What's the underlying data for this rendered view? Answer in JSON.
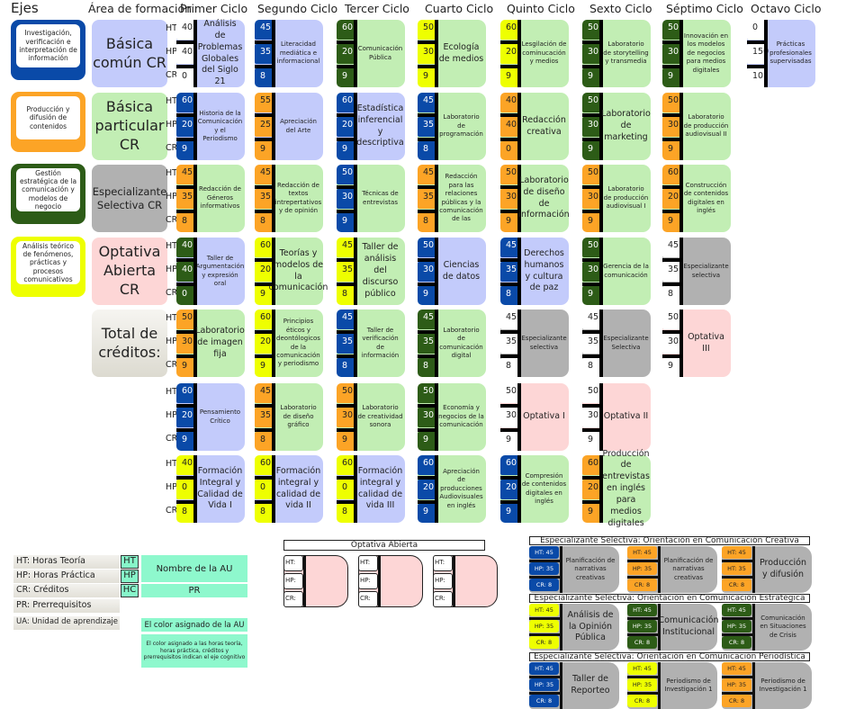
{
  "headers": {
    "ejes": "Ejes",
    "area": "Área de formación",
    "cycles": [
      "Primer Ciclo",
      "Segundo Ciclo",
      "Tercer Ciclo",
      "Cuarto Ciclo",
      "Quinto Ciclo",
      "Sexto Ciclo",
      "Séptimo Ciclo",
      "Octavo Ciclo"
    ]
  },
  "colors": {
    "blue": "#0a4aa8",
    "orange": "#fca426",
    "darkgreen": "#2d5c17",
    "yellow": "#eeff00",
    "lavender": "#c3cbfb",
    "lightgreen": "#c2eeb4",
    "pink": "#fdd6d6",
    "gray": "#b1b1b1",
    "mint": "#8ef8cd"
  },
  "axes": [
    {
      "label": "Investigación, verificación e interpretación de información",
      "color": "#0a4aa8"
    },
    {
      "label": "Producción y difusión de contenidos",
      "color": "#fca426"
    },
    {
      "label": "Gestión estratégica de la comunicación y modelos de negocio",
      "color": "#2d5c17"
    },
    {
      "label": "Análisis teórico de fenómenos, prácticas y procesos comunicativos",
      "color": "#eeff00"
    }
  ],
  "areas": [
    {
      "label": "Básica común CR",
      "color": "#c3cbfb"
    },
    {
      "label": "Básica particular CR",
      "color": "#c2eeb4"
    },
    {
      "label": "Especializante Selectiva CR",
      "color": "#b1b1b1"
    },
    {
      "label": "Optativa Abierta CR",
      "color": "#fdd6d6"
    },
    {
      "label": "Total de créditos:",
      "color": "#e6e4dc"
    }
  ],
  "row_labels": {
    "ht": "HT",
    "hp": "HP",
    "cr": "CR"
  },
  "courses": [
    {
      "cycle": 1,
      "row": 1,
      "name": "Análisis de Problemas Globales del Siglo 21",
      "ht": "40",
      "hp": "40",
      "cr": "0",
      "axis": "white",
      "area": "lavender",
      "big": true
    },
    {
      "cycle": 1,
      "row": 2,
      "name": "Historia de la Comunicación y el Periodismo",
      "ht": "60",
      "hp": "20",
      "cr": "9",
      "axis": "blue",
      "area": "lavender"
    },
    {
      "cycle": 1,
      "row": 3,
      "name": "Redacción de Géneros informativos",
      "ht": "45",
      "hp": "35",
      "cr": "8",
      "axis": "orange",
      "area": "lightgreen"
    },
    {
      "cycle": 1,
      "row": 4,
      "name": "Taller de Argumentación y expresión oral",
      "ht": "40",
      "hp": "40",
      "cr": "0",
      "axis": "darkgreen",
      "area": "lavender"
    },
    {
      "cycle": 1,
      "row": 5,
      "name": "Laboratorio de imagen fija",
      "ht": "50",
      "hp": "30",
      "cr": "9",
      "axis": "orange",
      "area": "lightgreen",
      "big": true
    },
    {
      "cycle": 1,
      "row": 6,
      "name": "Pensamiento Crítico",
      "ht": "60",
      "hp": "20",
      "cr": "9",
      "axis": "blue",
      "area": "lavender"
    },
    {
      "cycle": 1,
      "row": 7,
      "name": "Formación Integral y Calidad de Vida I",
      "ht": "40",
      "hp": "0",
      "cr": "8",
      "axis": "yellow",
      "area": "lavender",
      "big": true
    },
    {
      "cycle": 2,
      "row": 1,
      "name": "Literacidad mediática e informacional",
      "ht": "45",
      "hp": "35",
      "cr": "8",
      "axis": "blue",
      "area": "lavender"
    },
    {
      "cycle": 2,
      "row": 2,
      "name": "Apreciación del Arte",
      "ht": "55",
      "hp": "25",
      "cr": "9",
      "axis": "orange",
      "area": "lavender"
    },
    {
      "cycle": 2,
      "row": 3,
      "name": "Redacción de textos intrepertativos y de opinión",
      "ht": "45",
      "hp": "35",
      "cr": "8",
      "axis": "orange",
      "area": "lightgreen"
    },
    {
      "cycle": 2,
      "row": 4,
      "name": "Teorías y modelos de la comunicación",
      "ht": "60",
      "hp": "20",
      "cr": "9",
      "axis": "yellow",
      "area": "lightgreen",
      "big": true
    },
    {
      "cycle": 2,
      "row": 5,
      "name": "Principios éticos y deontólogicos de la comunicación y periodismo",
      "ht": "60",
      "hp": "20",
      "cr": "9",
      "axis": "yellow",
      "area": "lightgreen"
    },
    {
      "cycle": 2,
      "row": 6,
      "name": "Laboratorio de diseño gráfico",
      "ht": "45",
      "hp": "35",
      "cr": "8",
      "axis": "orange",
      "area": "lightgreen"
    },
    {
      "cycle": 2,
      "row": 7,
      "name": "Formación integral y calidad de vida II",
      "ht": "60",
      "hp": "0",
      "cr": "8",
      "axis": "yellow",
      "area": "lavender",
      "big": true
    },
    {
      "cycle": 3,
      "row": 1,
      "name": "Comunicación Pública",
      "ht": "60",
      "hp": "20",
      "cr": "9",
      "axis": "darkgreen",
      "area": "lightgreen"
    },
    {
      "cycle": 3,
      "row": 2,
      "name": "Estadística inferencial y descriptiva",
      "ht": "60",
      "hp": "20",
      "cr": "9",
      "axis": "blue",
      "area": "lavender",
      "big": true
    },
    {
      "cycle": 3,
      "row": 3,
      "name": "Técnicas de entrevistas",
      "ht": "50",
      "hp": "30",
      "cr": "9",
      "axis": "blue",
      "area": "lightgreen"
    },
    {
      "cycle": 3,
      "row": 4,
      "name": "Taller de análisis del discurso público",
      "ht": "45",
      "hp": "35",
      "cr": "8",
      "axis": "yellow",
      "area": "lightgreen",
      "big": true
    },
    {
      "cycle": 3,
      "row": 5,
      "name": "Taller de verificación de información",
      "ht": "45",
      "hp": "35",
      "cr": "8",
      "axis": "blue",
      "area": "lightgreen"
    },
    {
      "cycle": 3,
      "row": 6,
      "name": "Laboratorio de creatividad sonora",
      "ht": "50",
      "hp": "30",
      "cr": "9",
      "axis": "orange",
      "area": "lightgreen"
    },
    {
      "cycle": 3,
      "row": 7,
      "name": "Formación integral y calidad de vida III",
      "ht": "60",
      "hp": "0",
      "cr": "8",
      "axis": "yellow",
      "area": "lavender",
      "big": true
    },
    {
      "cycle": 4,
      "row": 1,
      "name": "Ecología de medios",
      "ht": "50",
      "hp": "30",
      "cr": "9",
      "axis": "yellow",
      "area": "lightgreen",
      "big": true
    },
    {
      "cycle": 4,
      "row": 2,
      "name": "Laboratorio de programación",
      "ht": "45",
      "hp": "35",
      "cr": "8",
      "axis": "blue",
      "area": "lightgreen"
    },
    {
      "cycle": 4,
      "row": 3,
      "name": "Redacción para las relaciones públicas y la comunicación de las",
      "ht": "45",
      "hp": "35",
      "cr": "8",
      "axis": "orange",
      "area": "lightgreen"
    },
    {
      "cycle": 4,
      "row": 4,
      "name": "Ciencias de datos",
      "ht": "50",
      "hp": "30",
      "cr": "9",
      "axis": "blue",
      "area": "lavender",
      "big": true
    },
    {
      "cycle": 4,
      "row": 5,
      "name": "Laboratorio de comunicación digital",
      "ht": "45",
      "hp": "35",
      "cr": "8",
      "axis": "darkgreen",
      "area": "lightgreen"
    },
    {
      "cycle": 4,
      "row": 6,
      "name": "Economía y negocios de la comunicación",
      "ht": "50",
      "hp": "30",
      "cr": "9",
      "axis": "darkgreen",
      "area": "lightgreen"
    },
    {
      "cycle": 4,
      "row": 7,
      "name": "Apreciación de producciones Audiovisuales en inglés",
      "ht": "60",
      "hp": "20",
      "cr": "9",
      "axis": "blue",
      "area": "lightgreen"
    },
    {
      "cycle": 5,
      "row": 1,
      "name": "Lesgilación de cominucación y medios",
      "ht": "60",
      "hp": "20",
      "cr": "9",
      "axis": "yellow",
      "area": "lightgreen"
    },
    {
      "cycle": 5,
      "row": 2,
      "name": "Redacción creativa",
      "ht": "40",
      "hp": "40",
      "cr": "0",
      "axis": "orange",
      "area": "lightgreen",
      "big": true
    },
    {
      "cycle": 5,
      "row": 3,
      "name": "Laboratorio de diseño de información",
      "ht": "50",
      "hp": "30",
      "cr": "9",
      "axis": "orange",
      "area": "lightgreen",
      "big": true
    },
    {
      "cycle": 5,
      "row": 4,
      "name": "Derechos humanos y cultura de paz",
      "ht": "45",
      "hp": "35",
      "cr": "8",
      "axis": "blue",
      "area": "lavender",
      "big": true
    },
    {
      "cycle": 5,
      "row": 5,
      "name": "Especializante selectiva",
      "ht": "45",
      "hp": "35",
      "cr": "8",
      "axis": "white",
      "area": "gray"
    },
    {
      "cycle": 5,
      "row": 6,
      "name": "Optativa I",
      "ht": "50",
      "hp": "30",
      "cr": "9",
      "axis": "white",
      "area": "pink",
      "big": true
    },
    {
      "cycle": 5,
      "row": 7,
      "name": "Compresión de contenidos digitales en inglés",
      "ht": "60",
      "hp": "20",
      "cr": "9",
      "axis": "blue",
      "area": "lightgreen"
    },
    {
      "cycle": 6,
      "row": 1,
      "name": "Laboratorio de storytelling y transmedia",
      "ht": "50",
      "hp": "30",
      "cr": "9",
      "axis": "darkgreen",
      "area": "lightgreen"
    },
    {
      "cycle": 6,
      "row": 2,
      "name": "Laboratorio de marketing",
      "ht": "50",
      "hp": "30",
      "cr": "9",
      "axis": "darkgreen",
      "area": "lightgreen",
      "big": true
    },
    {
      "cycle": 6,
      "row": 3,
      "name": "Laboratorio de producción audiovisual I",
      "ht": "50",
      "hp": "30",
      "cr": "9",
      "axis": "orange",
      "area": "lightgreen"
    },
    {
      "cycle": 6,
      "row": 4,
      "name": "Gerencia de la comunicación",
      "ht": "50",
      "hp": "30",
      "cr": "9",
      "axis": "darkgreen",
      "area": "lightgreen"
    },
    {
      "cycle": 6,
      "row": 5,
      "name": "Especializante Selectiva",
      "ht": "45",
      "hp": "35",
      "cr": "8",
      "axis": "white",
      "area": "gray"
    },
    {
      "cycle": 6,
      "row": 6,
      "name": "Optativa II",
      "ht": "50",
      "hp": "30",
      "cr": "9",
      "axis": "white",
      "area": "pink",
      "big": true
    },
    {
      "cycle": 6,
      "row": 7,
      "name": "Producción de entrevistas en inglés para medios digitales",
      "ht": "60",
      "hp": "20",
      "cr": "9",
      "axis": "orange",
      "area": "lightgreen",
      "big": true
    },
    {
      "cycle": 7,
      "row": 1,
      "name": "Innovación en los modelos de negocios para medios digitales",
      "ht": "50",
      "hp": "30",
      "cr": "9",
      "axis": "darkgreen",
      "area": "lightgreen"
    },
    {
      "cycle": 7,
      "row": 2,
      "name": "Laboratorio de producción audiovisual II",
      "ht": "50",
      "hp": "30",
      "cr": "9",
      "axis": "orange",
      "area": "lightgreen"
    },
    {
      "cycle": 7,
      "row": 3,
      "name": "Construcción de contenidos digitales en inglés",
      "ht": "60",
      "hp": "20",
      "cr": "9",
      "axis": "orange",
      "area": "lightgreen"
    },
    {
      "cycle": 7,
      "row": 4,
      "name": "Especializante selectiva",
      "ht": "45",
      "hp": "35",
      "cr": "8",
      "axis": "white",
      "area": "gray"
    },
    {
      "cycle": 7,
      "row": 5,
      "name": "Optativa III",
      "ht": "50",
      "hp": "30",
      "cr": "9",
      "axis": "white",
      "area": "pink",
      "big": true
    },
    {
      "cycle": 8,
      "row": 1,
      "name": "Prácticas profesionales supervisadas",
      "ht": "0",
      "hp": "150",
      "cr": "10",
      "axis": "white",
      "area": "lavender"
    }
  ],
  "legend": {
    "rows": [
      "HT: Horas Teoría",
      "HP: Horas Práctica",
      "CR: Créditos",
      "PR: Prerrequisitos",
      "UA: Unidad de aprendizaje"
    ],
    "squares": [
      "HT",
      "HP",
      "HC"
    ],
    "name_box": "Nombre de la AU",
    "pr_box": "PR",
    "color_box": "El color asignado de la AU",
    "color_note": "El color asignado a las horas teoría, horas práctica, créditos y prerrequisitos indican el eje cognitivo"
  },
  "optativa_abierta": {
    "title": "Optativa Abierta",
    "cells": [
      "HT:",
      "HP:",
      "CR:"
    ]
  },
  "especializantes": [
    {
      "title": "Especializante Selectiva: Orientación en Comunicación Creativa",
      "items": [
        {
          "name": "Planificación de narrativas creativas",
          "cells": [
            "HT: 45",
            "HP: 35",
            "CR: 8"
          ],
          "axis": "blue"
        },
        {
          "name": "Planificación de narrativas creativas",
          "cells": [
            "HT: 45",
            "HP: 35",
            "CR: 8"
          ],
          "axis": "orange"
        },
        {
          "name": "Producción y difusión",
          "cells": [
            "HT: 45",
            "HT: 35",
            "CR: 8"
          ],
          "axis": "orange",
          "big": true
        }
      ]
    },
    {
      "title": "Especializante Selectiva: Orientación en Comunicación Estratégica",
      "items": [
        {
          "name": "Análisis de la Opinión Pública",
          "cells": [
            "HT: 45",
            "HP: 35",
            "CR: 8"
          ],
          "axis": "yellow",
          "big": true
        },
        {
          "name": "Comunicación Institucional",
          "cells": [
            "HT: 45",
            "HP: 35",
            "CR: 8"
          ],
          "axis": "darkgreen",
          "big": true
        },
        {
          "name": "Comunicación en Situaciones de Crisis",
          "cells": [
            "HT: 45",
            "HP: 35",
            "CR: 8"
          ],
          "axis": "darkgreen"
        }
      ]
    },
    {
      "title": "Especializante Selectiva: Orientación en Comunicación Periodística",
      "items": [
        {
          "name": "Taller de Reporteo",
          "cells": [
            "HT: 45",
            "HP: 35",
            "CR: 8"
          ],
          "axis": "blue",
          "big": true
        },
        {
          "name": "Periodismo de Investigación 1",
          "cells": [
            "HT: 45",
            "HP: 35",
            "CR: 8"
          ],
          "axis": "yellow"
        },
        {
          "name": "Periodismo de Investigación 1",
          "cells": [
            "HT: 45",
            "HP: 35",
            "CR: 8"
          ],
          "axis": "orange"
        }
      ]
    }
  ]
}
